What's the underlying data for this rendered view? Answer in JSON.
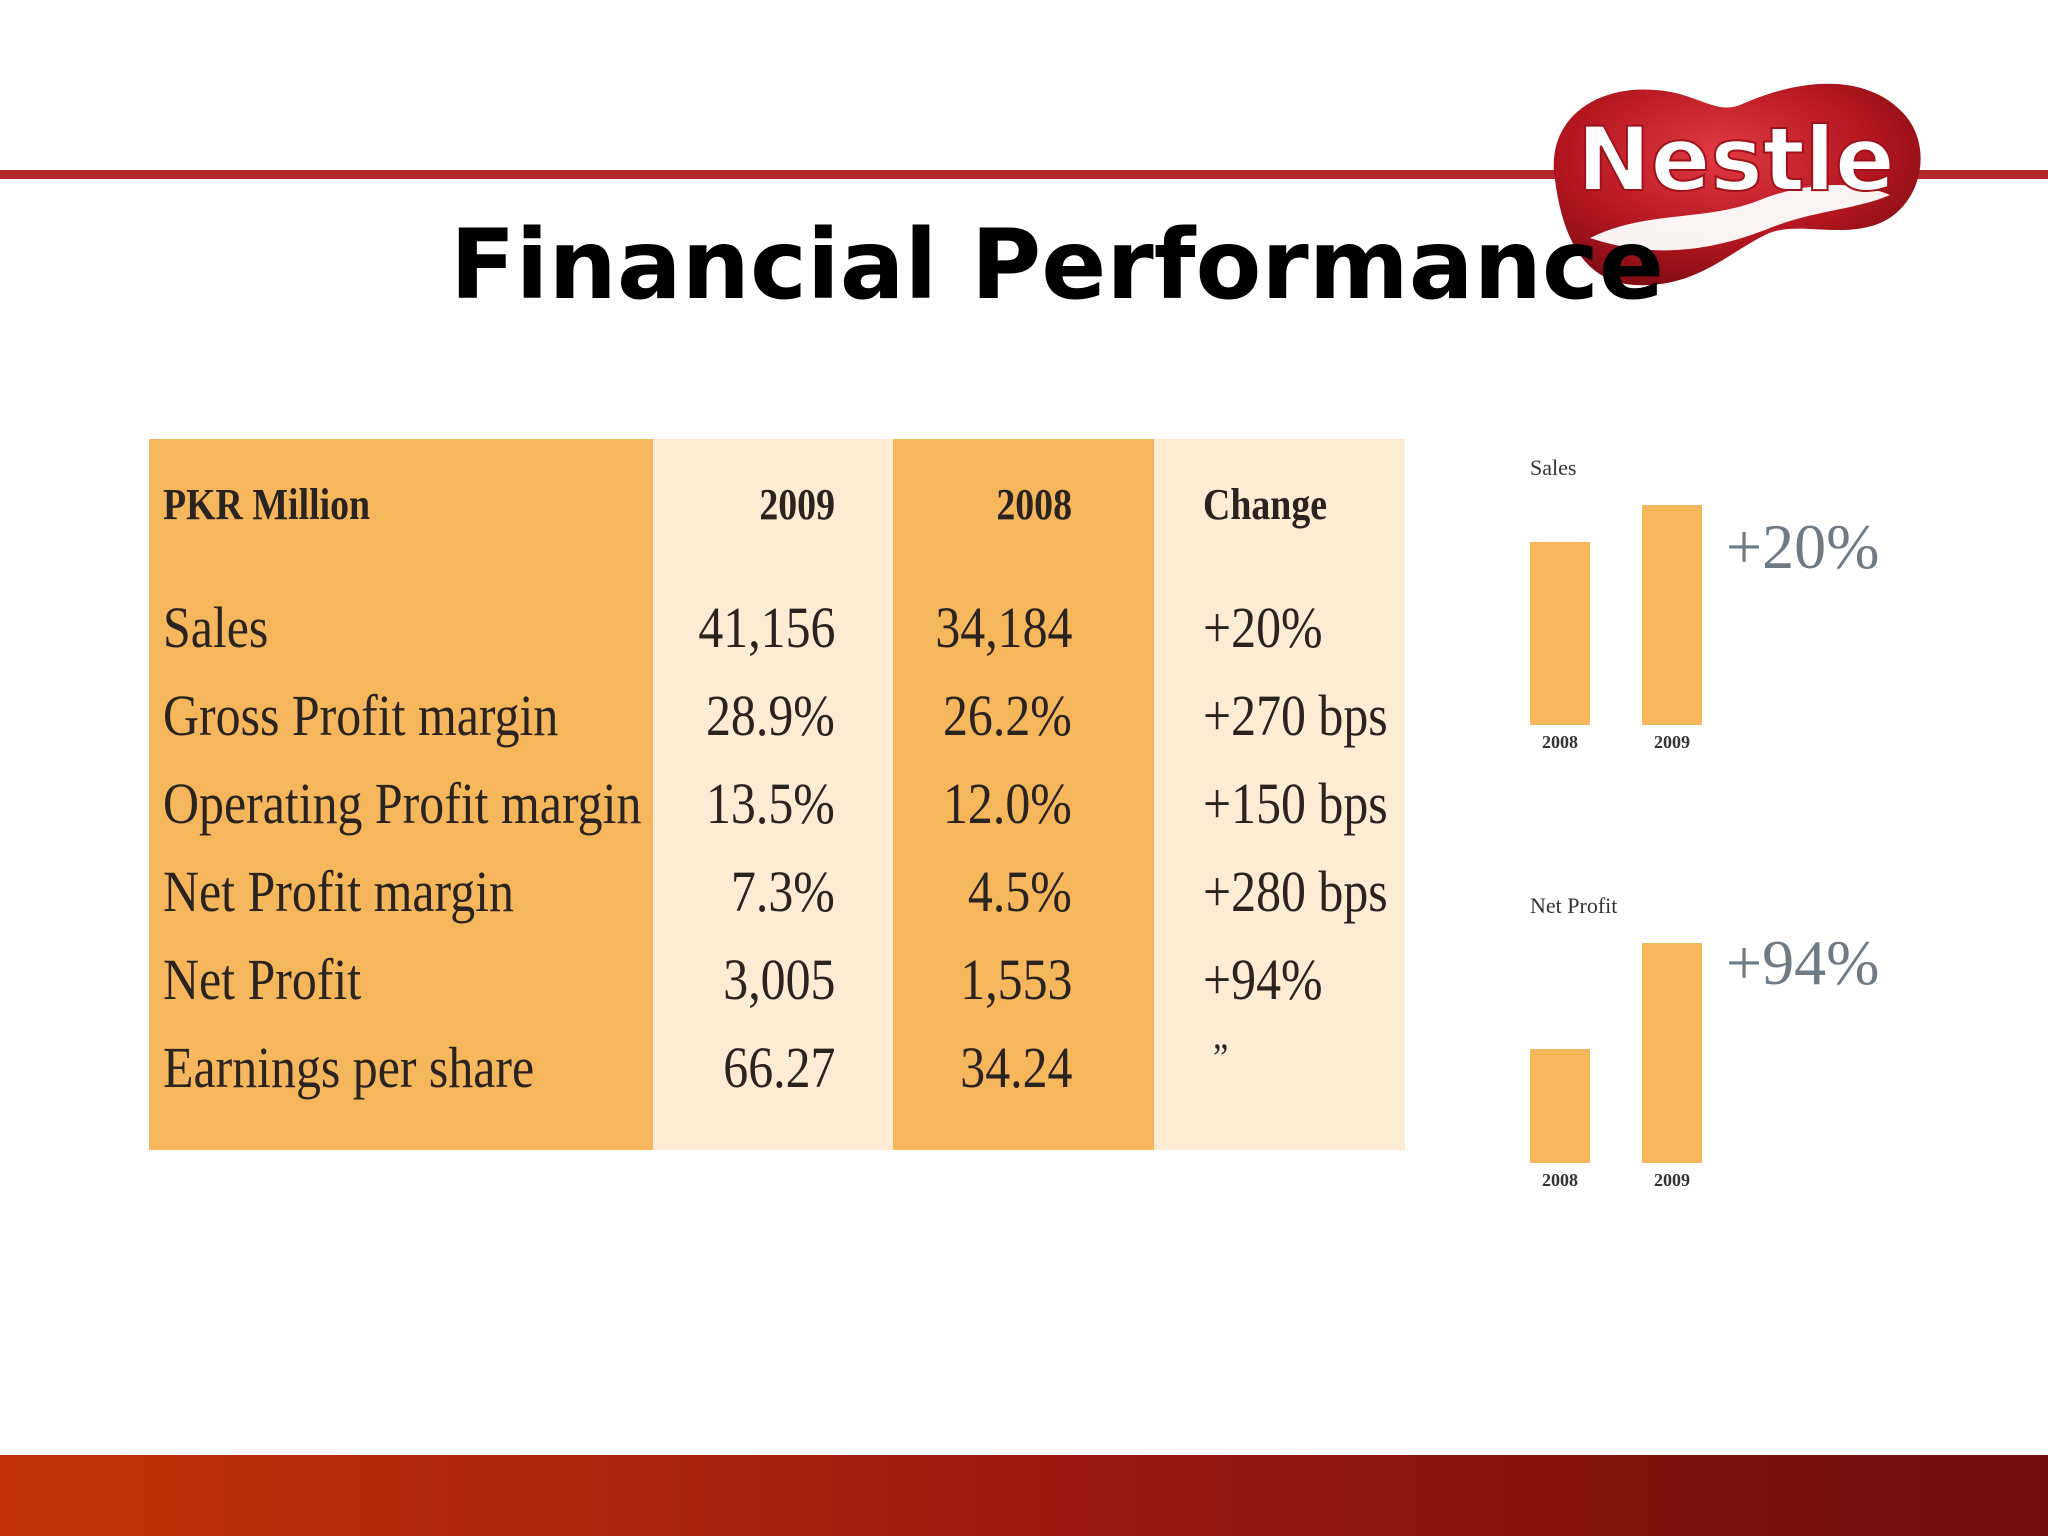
{
  "slide": {
    "title": "Financial Performance",
    "logo_text": "Nestle",
    "accent_color": "#b3262a",
    "table_dark_color": "#f6b65c",
    "table_light_color": "#fdebd3"
  },
  "table": {
    "headers": [
      "PKR Million",
      "2009",
      "2008",
      "Change"
    ],
    "rows": [
      [
        "Sales",
        "41,156",
        "34,184",
        "+20%"
      ],
      [
        "Gross Profit margin",
        "28.9%",
        "26.2%",
        "+270 bps"
      ],
      [
        "Operating Profit margin",
        "13.5%",
        "12.0%",
        "+150 bps"
      ],
      [
        "Net Profit margin",
        "7.3%",
        "4.5%",
        "+280 bps"
      ],
      [
        "Net Profit",
        "3,005",
        "1,553",
        "+94%"
      ],
      [
        "Earnings per share",
        "66.27",
        "34.24",
        "”"
      ]
    ]
  },
  "chart_data": [
    {
      "type": "bar",
      "title": "Sales",
      "categories": [
        "2008",
        "2009"
      ],
      "values": [
        34184,
        41156
      ],
      "annotation": "+20%",
      "ylim": [
        0,
        41156
      ]
    },
    {
      "type": "bar",
      "title": "Net Profit",
      "categories": [
        "2008",
        "2009"
      ],
      "values": [
        1553,
        3005
      ],
      "annotation": "+94%",
      "ylim": [
        0,
        3005
      ]
    }
  ]
}
